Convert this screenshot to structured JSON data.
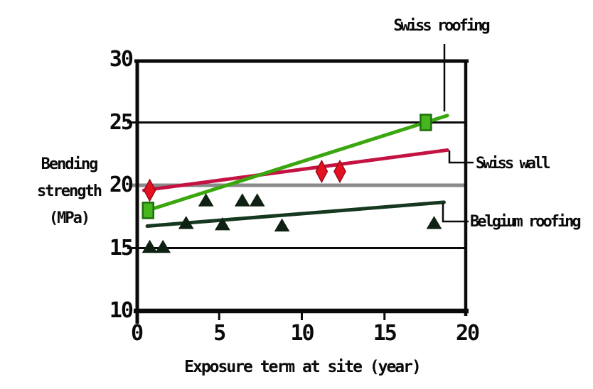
{
  "chart_data": {
    "type": "scatter",
    "title": "",
    "xlabel": "Exposure term at site (year)",
    "ylabel": "Bending strength (MPa)",
    "ylabel_lines": [
      "Bending",
      "strength",
      "(MPa)"
    ],
    "xlim": [
      0,
      20
    ],
    "ylim": [
      10,
      30
    ],
    "x_ticks": [
      0,
      5,
      10,
      15,
      20
    ],
    "y_ticks": [
      30,
      25,
      20,
      15,
      10
    ],
    "grid": "horizontal",
    "gridline_values": [
      25,
      15
    ],
    "reference_line": {
      "y": 20,
      "color": "#8a8a8a"
    },
    "axis_color": "#0a0a0a",
    "legend_position": "callout-labels",
    "series": [
      {
        "name": "Belgium roofing",
        "marker": "triangle",
        "line_color": "#16381f",
        "marker_fill": "#0e2113",
        "marker_stroke": "#0e2113",
        "points": [
          [
            0.8,
            15.1
          ],
          [
            1.6,
            15.1
          ],
          [
            3.0,
            17.0
          ],
          [
            4.2,
            18.8
          ],
          [
            5.2,
            16.9
          ],
          [
            6.4,
            18.8
          ],
          [
            7.3,
            18.8
          ],
          [
            8.8,
            16.8
          ],
          [
            18.0,
            17.0
          ]
        ],
        "trend": [
          [
            0.65,
            16.75
          ],
          [
            18.6,
            18.65
          ]
        ]
      },
      {
        "name": "Swiss wall",
        "marker": "diamond",
        "line_color": "#c41342",
        "marker_fill": "#e31220",
        "marker_stroke": "#9b0a1c",
        "points": [
          [
            0.8,
            19.6
          ],
          [
            11.2,
            21.1
          ],
          [
            12.3,
            21.1
          ]
        ],
        "trend": [
          [
            0.45,
            19.6
          ],
          [
            18.8,
            22.8
          ]
        ]
      },
      {
        "name": "Swiss roofing",
        "marker": "square",
        "line_color": "#3aa70f",
        "marker_fill": "#46b51e",
        "marker_stroke": "#1d6e0c",
        "points": [
          [
            0.7,
            18.0
          ],
          [
            17.5,
            25.0
          ]
        ],
        "trend": [
          [
            0.55,
            17.95
          ],
          [
            18.8,
            25.55
          ]
        ]
      }
    ],
    "annotations": [
      {
        "label": "Swiss roofing",
        "series": "Swiss roofing"
      },
      {
        "label": "Swiss wall",
        "series": "Swiss wall"
      },
      {
        "label": "Belgium roofing",
        "series": "Belgium roofing"
      }
    ]
  }
}
